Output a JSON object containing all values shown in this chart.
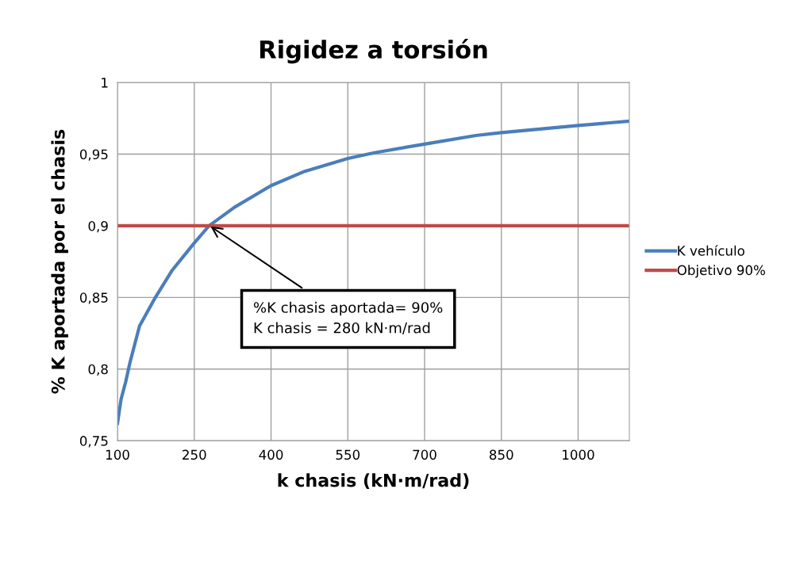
{
  "chart_data": {
    "type": "line",
    "title": "Rigidez a torsión",
    "xlabel": "k chasis (kN·m/rad)",
    "ylabel": "% K aportada por el chasis",
    "xlim": [
      100,
      1100
    ],
    "xticks": [
      100,
      250,
      400,
      550,
      700,
      850,
      1000
    ],
    "ylim": [
      0.75,
      1
    ],
    "yticks": [
      {
        "value": 0.75,
        "label": "0,75"
      },
      {
        "value": 0.8,
        "label": "0,8"
      },
      {
        "value": 0.85,
        "label": "0,85"
      },
      {
        "value": 0.9,
        "label": "0,9"
      },
      {
        "value": 0.95,
        "label": "0,95"
      },
      {
        "value": 1,
        "label": "1"
      }
    ],
    "grid": true,
    "legend": "right",
    "marker": "none",
    "line_style": "solid",
    "series": [
      {
        "name": "K vehículo",
        "color": "#4a7ebb",
        "x": [
          100,
          107,
          116,
          124,
          143,
          174,
          207,
          250,
          279,
          329,
          400,
          466,
          550,
          602,
          700,
          800,
          850,
          1000,
          1100
        ],
        "values": [
          0.762,
          0.779,
          0.791,
          0.804,
          0.83,
          0.85,
          0.869,
          0.888,
          0.9,
          0.913,
          0.928,
          0.938,
          0.947,
          0.951,
          0.957,
          0.963,
          0.965,
          0.97,
          0.973
        ]
      },
      {
        "name": "Objetivo 90%",
        "color": "#be4b48",
        "x": [
          100,
          1100
        ],
        "values": [
          0.9,
          0.9
        ]
      }
    ],
    "annotations": [
      {
        "text": "%K chasis aportada= 90%\nK chasis = 280 kN·m/rad",
        "x": 280,
        "y": 0.9
      }
    ]
  }
}
